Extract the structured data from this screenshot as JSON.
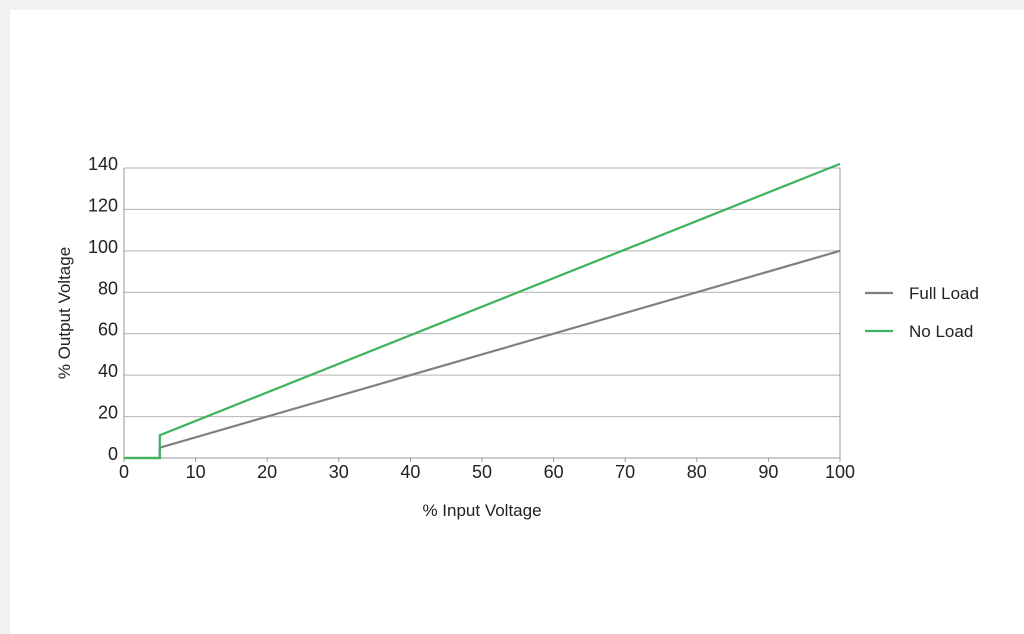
{
  "chart_data": {
    "type": "line",
    "title": "",
    "xlabel": "% Input Voltage",
    "ylabel": "% Output Voltage",
    "xlim": [
      0,
      100
    ],
    "ylim": [
      0,
      140
    ],
    "xticks": [
      0,
      10,
      20,
      30,
      40,
      50,
      60,
      70,
      80,
      90,
      100
    ],
    "yticks": [
      0,
      20,
      40,
      60,
      80,
      100,
      120,
      140
    ],
    "grid": "horizontal",
    "legend_position": "right",
    "series": [
      {
        "name": "Full Load",
        "color": "#808080",
        "x": [
          0,
          5,
          5,
          100
        ],
        "y": [
          0,
          0,
          5,
          100
        ]
      },
      {
        "name": "No Load",
        "color": "#3cb35a",
        "x": [
          0,
          5,
          5,
          100
        ],
        "y": [
          0,
          0,
          11,
          142
        ]
      }
    ]
  }
}
